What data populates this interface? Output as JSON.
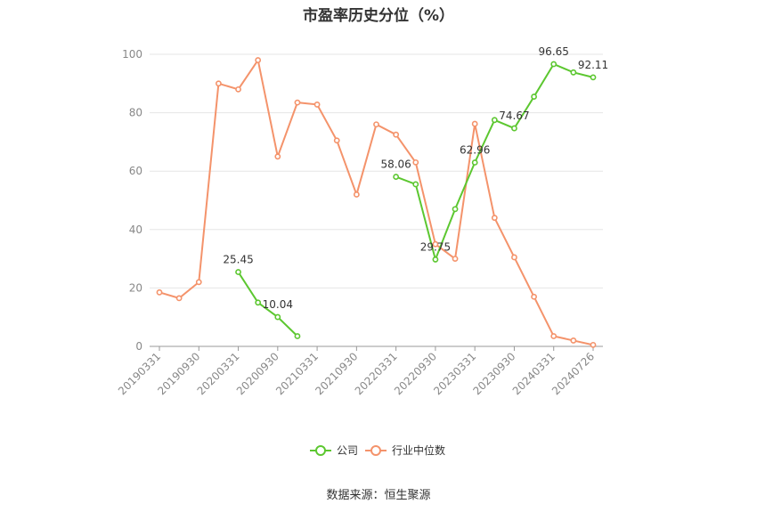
{
  "chart_data": {
    "type": "line",
    "title": "市盈率历史分位（%）",
    "source": "数据来源：恒生聚源",
    "ylim": [
      0,
      100
    ],
    "yticks": [
      0,
      20,
      40,
      60,
      80,
      100
    ],
    "grid": true,
    "legend_position": "bottom",
    "x": [
      "20190331",
      "20190630",
      "20190930",
      "20191231",
      "20200331",
      "20200630",
      "20200930",
      "20201231",
      "20210331",
      "20210630",
      "20210930",
      "20211231",
      "20220331",
      "20220630",
      "20220930",
      "20221231",
      "20230331",
      "20230630",
      "20230930",
      "20231231",
      "20240331",
      "20240630",
      "20240726"
    ],
    "x_tick_labels": [
      "20190331",
      "20190930",
      "20200331",
      "20200930",
      "20210331",
      "20210930",
      "20220331",
      "20220930",
      "20230331",
      "20230930",
      "20240331",
      "20240726"
    ],
    "series": [
      {
        "name": "公司",
        "color": "#5cc730",
        "values": [
          null,
          null,
          null,
          null,
          25.45,
          15.0,
          10.04,
          3.5,
          null,
          null,
          null,
          null,
          58.06,
          55.5,
          29.75,
          47.0,
          62.96,
          77.5,
          74.67,
          85.5,
          96.65,
          93.8,
          92.11
        ],
        "labels": [
          {
            "index": 4,
            "text": "25.45"
          },
          {
            "index": 6,
            "text": "10.04"
          },
          {
            "index": 12,
            "text": "58.06"
          },
          {
            "index": 14,
            "text": "29.75"
          },
          {
            "index": 16,
            "text": "62.96"
          },
          {
            "index": 18,
            "text": "74.67"
          },
          {
            "index": 20,
            "text": "96.65"
          },
          {
            "index": 22,
            "text": "92.11"
          }
        ]
      },
      {
        "name": "行业中位数",
        "color": "#f4936b",
        "values": [
          18.5,
          16.5,
          22.0,
          90.0,
          88.0,
          98.0,
          65.0,
          83.5,
          82.8,
          70.5,
          52.0,
          76.0,
          72.5,
          63.0,
          35.0,
          30.0,
          76.2,
          44.0,
          30.5,
          17.0,
          3.5,
          2.0,
          0.5
        ],
        "labels": []
      }
    ]
  }
}
